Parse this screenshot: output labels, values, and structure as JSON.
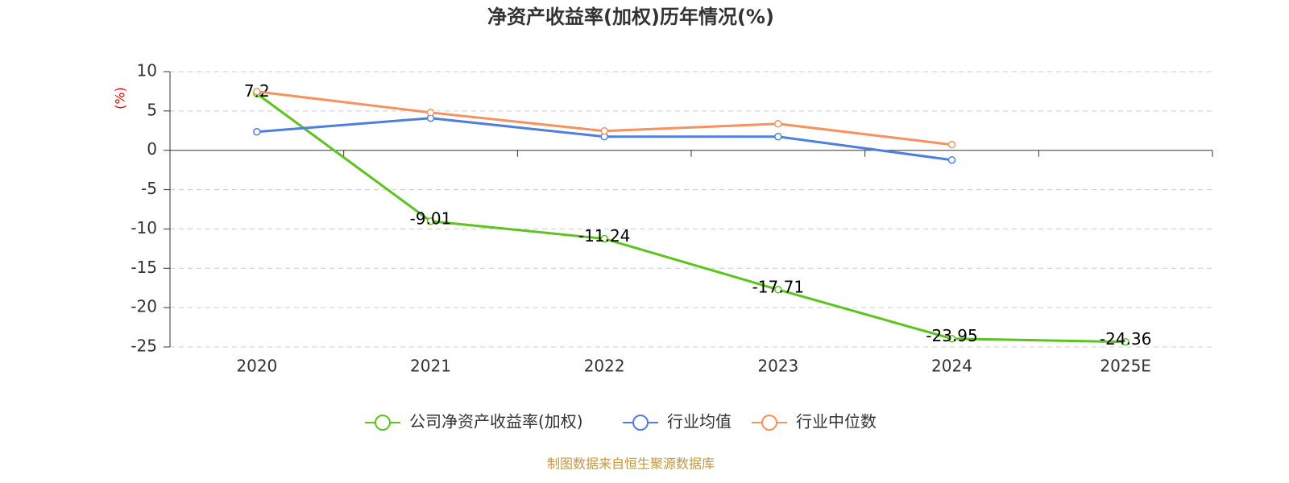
{
  "chart_data": {
    "type": "line",
    "title": "净资产收益率(加权)历年情况(%)",
    "y_label": "(%)",
    "categories": [
      "2020",
      "2021",
      "2022",
      "2023",
      "2024",
      "2025E"
    ],
    "series": [
      {
        "name": "公司净资产收益率(加权)",
        "color": "#5cc31f",
        "values": [
          7.2,
          -9.01,
          -11.24,
          -17.71,
          -23.95,
          -24.36
        ],
        "data_labels": true
      },
      {
        "name": "行业均值",
        "color": "#4e7fdf",
        "values": [
          2.35,
          4.09,
          1.74,
          1.74,
          -1.23,
          null
        ]
      },
      {
        "name": "行业中位数",
        "color": "#f5925e",
        "values": [
          7.46,
          4.8,
          2.45,
          3.37,
          0.72,
          null
        ]
      }
    ],
    "ylim": [
      -25,
      10
    ],
    "yticks": [
      10,
      5,
      0,
      -5,
      -10,
      -15,
      -20,
      -25
    ],
    "grid": true,
    "legend": "bottom",
    "source": "制图数据来自恒生聚源数据库"
  }
}
